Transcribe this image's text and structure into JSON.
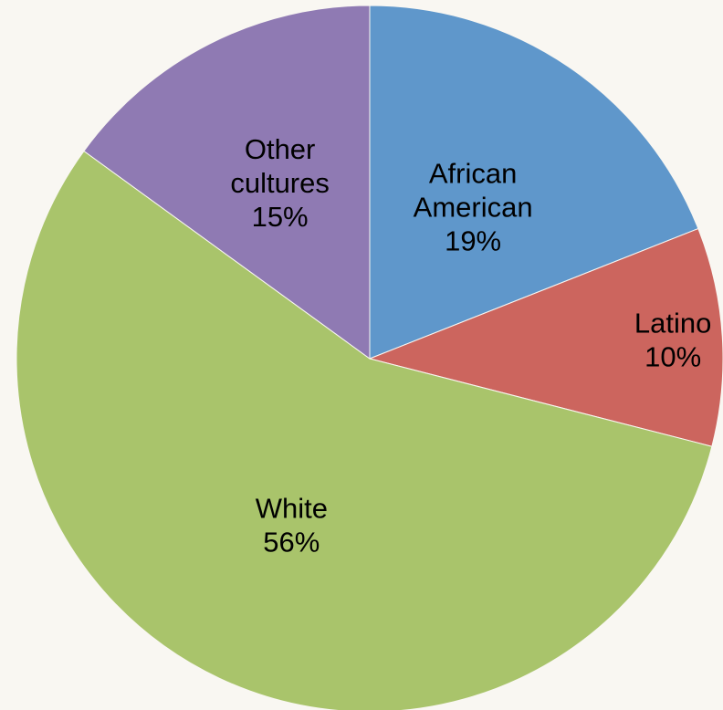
{
  "chart_data": {
    "type": "pie",
    "title": "",
    "legend": "none",
    "slices": [
      {
        "label_lines": [
          "African",
          "American"
        ],
        "percent_label": "19%",
        "value": 19,
        "color": "#5f97cb"
      },
      {
        "label_lines": [
          "Latino"
        ],
        "percent_label": "10%",
        "value": 10,
        "color": "#cc655e"
      },
      {
        "label_lines": [
          "White"
        ],
        "percent_label": "56%",
        "value": 56,
        "color": "#a9c46b"
      },
      {
        "label_lines": [
          "Other",
          "cultures"
        ],
        "percent_label": "15%",
        "value": 15,
        "color": "#8f7ab3"
      }
    ]
  }
}
